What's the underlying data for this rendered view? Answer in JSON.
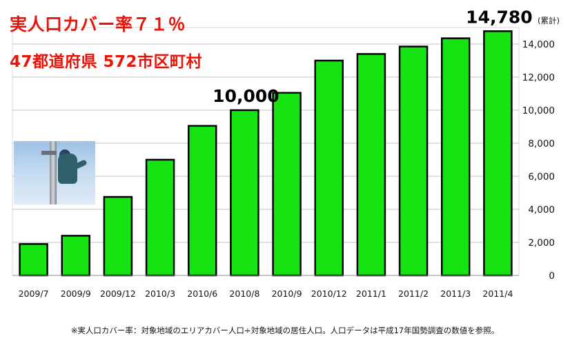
{
  "headline": {
    "coverage": "実人口カバー率７１％",
    "regions": "47都道府県 572市区町村"
  },
  "footnote": "※実人口カバー率：対象地域のエリアカバー人口÷対象地域の居住人口。人口データは平成17年国勢調査の数値を参照。",
  "colors": {
    "bar": "#16e412",
    "headline": "#e8140a"
  },
  "chart_data": {
    "type": "bar",
    "categories": [
      "2009/7",
      "2009/9",
      "2009/12",
      "2010/3",
      "2010/6",
      "2010/8",
      "2010/9",
      "2010/12",
      "2011/1",
      "2011/2",
      "2011/3",
      "2011/4"
    ],
    "values": [
      1900,
      2400,
      4750,
      7000,
      9050,
      10000,
      11050,
      13000,
      13400,
      13850,
      14350,
      14780
    ],
    "ylabel": "(累計)",
    "ylim": [
      0,
      14000
    ],
    "yticks": [
      0,
      2000,
      4000,
      6000,
      8000,
      10000,
      12000,
      14000
    ],
    "ytick_labels": [
      "0",
      "2,000",
      "4,000",
      "6,000",
      "8,000",
      "10,000",
      "12,000",
      "14,000"
    ],
    "y_axis_side": "right",
    "grid": true,
    "annotations": [
      {
        "category": "2010/8",
        "text": "10,000"
      },
      {
        "category": "2011/4",
        "text": "14,780"
      }
    ]
  }
}
